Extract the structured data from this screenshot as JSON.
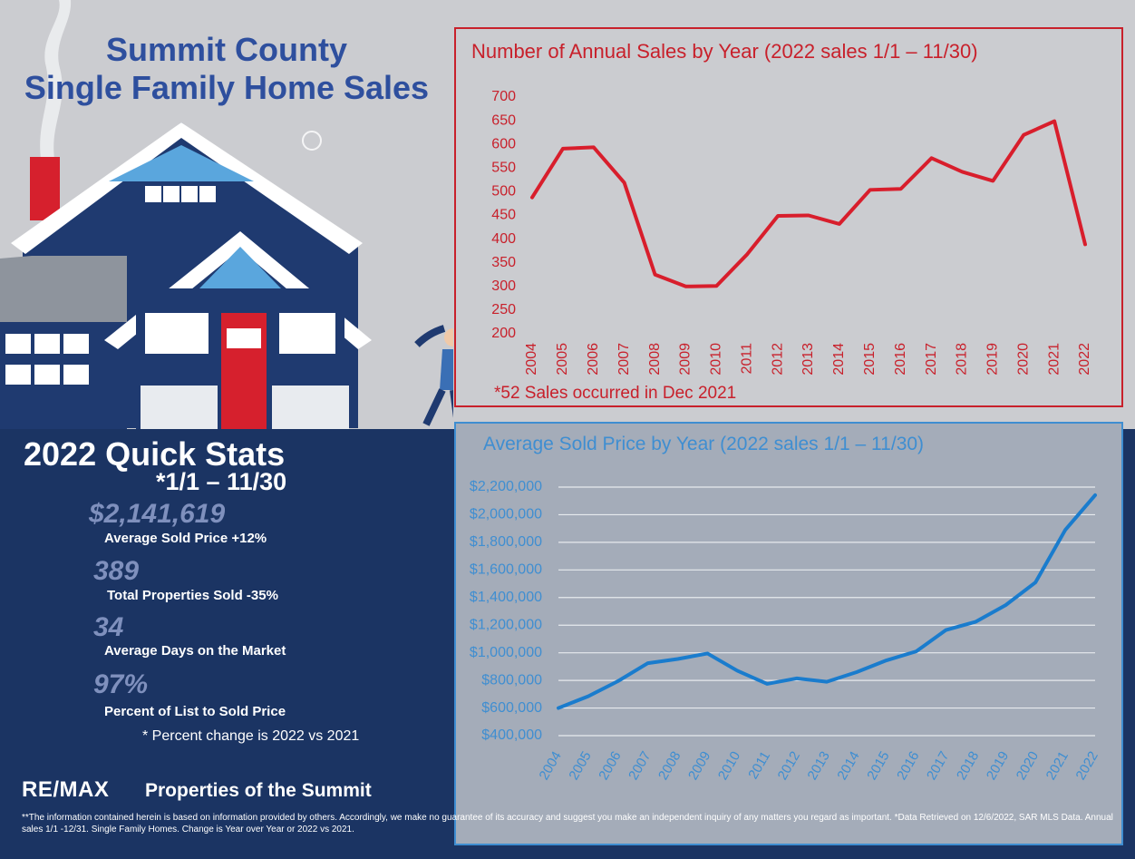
{
  "header": {
    "title_line1": "Summit County",
    "title_line2": "Single Family Home Sales"
  },
  "quick_stats": {
    "title": "2022 Quick Stats",
    "subtitle": "*1/1 – 11/30",
    "stats": [
      {
        "value": "$2,141,619",
        "label": "Average Sold Price +12%"
      },
      {
        "value": "389",
        "label": "Total Properties Sold -35%"
      },
      {
        "value": "34",
        "label": "Average Days on the Market"
      },
      {
        "value": "97%",
        "label": "Percent of List to Sold Price"
      }
    ],
    "note": "* Percent change is 2022 vs 2021"
  },
  "footer": {
    "brand_logo": "RE/MAX",
    "brand_name": "Properties of the Summit",
    "disclaimer": "**The information contained herein is based on information provided by others. Accordingly, we make no guarantee of its accuracy and suggest you make an independent inquiry of any matters you regard as important. *Data Retrieved on 12/6/2022, SAR MLS Data. Annual sales 1/1 -12/31. Single Family Homes. Change is Year over Year or 2022 vs 2021."
  },
  "colors": {
    "red": "#c8202b",
    "line_red": "#d81e2c",
    "blue": "#3f8ed1",
    "line_blue": "#1a7ccd",
    "navy": "#1b3463"
  },
  "chart_data": [
    {
      "type": "line",
      "title": "Number of Annual Sales by Year (2022 sales 1/1 – 11/30)",
      "note": "*52 Sales occurred in Dec 2021",
      "x": [
        "2004",
        "2005",
        "2006",
        "2007",
        "2008",
        "2009",
        "2010",
        "2011",
        "2012",
        "2013",
        "2014",
        "2015",
        "2016",
        "2017",
        "2018",
        "2019",
        "2020",
        "2021",
        "2022"
      ],
      "values": [
        488,
        591,
        594,
        519,
        325,
        300,
        301,
        368,
        449,
        450,
        432,
        504,
        506,
        571,
        542,
        523,
        620,
        649,
        389
      ],
      "ylim": [
        200,
        700
      ],
      "yticks": [
        "200",
        "250",
        "300",
        "350",
        "400",
        "450",
        "500",
        "550",
        "600",
        "650",
        "700"
      ],
      "grid": false
    },
    {
      "type": "line",
      "title": "Average Sold Price by Year (2022 sales 1/1 – 11/30)",
      "x": [
        "2004",
        "2005",
        "2006",
        "2007",
        "2008",
        "2009",
        "2010",
        "2011",
        "2012",
        "2013",
        "2014",
        "2015",
        "2016",
        "2017",
        "2018",
        "2019",
        "2020",
        "2021",
        "2022"
      ],
      "values": [
        600000,
        685000,
        795000,
        925000,
        955000,
        995000,
        870000,
        775000,
        815000,
        790000,
        860000,
        945000,
        1010000,
        1165000,
        1225000,
        1345000,
        1510000,
        1890000,
        2141619
      ],
      "ylim": [
        400000,
        2200000
      ],
      "yticks": [
        "$400,000",
        "$600,000",
        "$800,000",
        "$1,000,000",
        "$1,200,000",
        "$1,400,000",
        "$1,600,000",
        "$1,800,000",
        "$2,000,000",
        "$2,200,000"
      ],
      "grid": true
    }
  ]
}
